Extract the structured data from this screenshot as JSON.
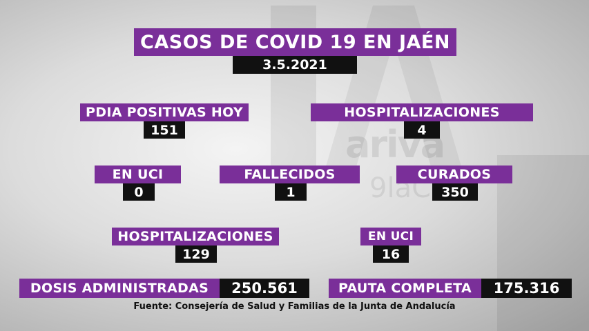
{
  "header": {
    "title": "CASOS DE COVID 19 EN JAÉN",
    "date": "3.5.2021"
  },
  "stats": {
    "pdia_label": "PDIA POSITIVAS HOY",
    "pdia_value": "151",
    "hosp_label": "HOSPITALIZACIONES",
    "hosp_value": "4",
    "uci_label": "EN UCI",
    "uci_value": "0",
    "fallecidos_label": "FALLECIDOS",
    "fallecidos_value": "1",
    "curados_label": "CURADOS",
    "curados_value": "350",
    "hosp_total_label": "HOSPITALIZACIONES",
    "hosp_total_value": "129",
    "uci_total_label": "EN UCI",
    "uci_total_value": "16"
  },
  "vaccination": {
    "dosis_label": "DOSIS ADMINISTRADAS",
    "dosis_value": "250.561",
    "pauta_label": "PAUTA COMPLETA",
    "pauta_value": "175.316"
  },
  "footer": {
    "source": "Fuente: Consejería de Salud y Familias de la Junta de Andalucía"
  },
  "colors": {
    "accent": "#7a2f99",
    "value_bg": "#111111"
  }
}
